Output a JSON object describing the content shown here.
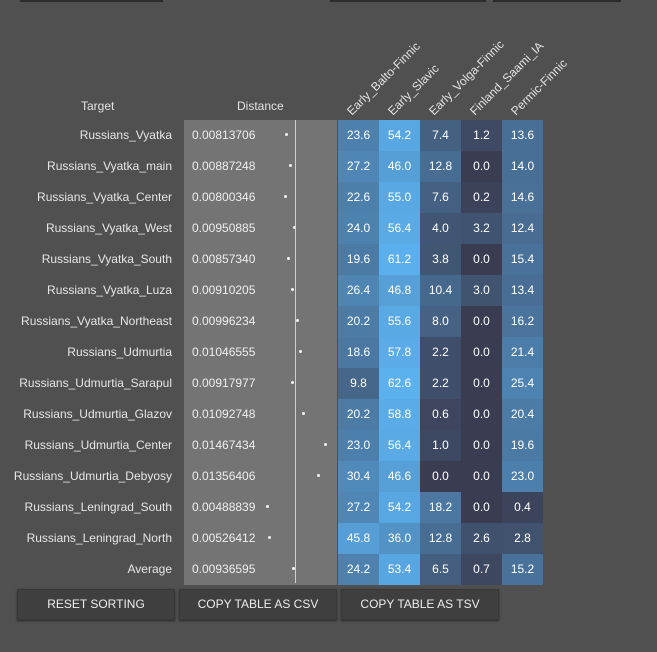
{
  "headers": {
    "target": "Target",
    "distance": "Distance",
    "components": [
      "Early_Balto-Finnic",
      "Early_Slavic",
      "Early_Volga-Finnic",
      "Finland_Saami_IA",
      "Permic-Finnic"
    ]
  },
  "rows": [
    {
      "target": "Russians_Vyatka",
      "distance": "0.00813706",
      "values": [
        "23.6",
        "54.2",
        "7.4",
        "1.2",
        "13.6"
      ]
    },
    {
      "target": "Russians_Vyatka_main",
      "distance": "0.00887248",
      "values": [
        "27.2",
        "46.0",
        "12.8",
        "0.0",
        "14.0"
      ]
    },
    {
      "target": "Russians_Vyatka_Center",
      "distance": "0.00800346",
      "values": [
        "22.6",
        "55.0",
        "7.6",
        "0.2",
        "14.6"
      ]
    },
    {
      "target": "Russians_Vyatka_West",
      "distance": "0.00950885",
      "values": [
        "24.0",
        "56.4",
        "4.0",
        "3.2",
        "12.4"
      ]
    },
    {
      "target": "Russians_Vyatka_South",
      "distance": "0.00857340",
      "values": [
        "19.6",
        "61.2",
        "3.8",
        "0.0",
        "15.4"
      ]
    },
    {
      "target": "Russians_Vyatka_Luza",
      "distance": "0.00910205",
      "values": [
        "26.4",
        "46.8",
        "10.4",
        "3.0",
        "13.4"
      ]
    },
    {
      "target": "Russians_Vyatka_Northeast",
      "distance": "0.00996234",
      "values": [
        "20.2",
        "55.6",
        "8.0",
        "0.0",
        "16.2"
      ]
    },
    {
      "target": "Russians_Udmurtia",
      "distance": "0.01046555",
      "values": [
        "18.6",
        "57.8",
        "2.2",
        "0.0",
        "21.4"
      ]
    },
    {
      "target": "Russians_Udmurtia_Sarapul",
      "distance": "0.00917977",
      "values": [
        "9.8",
        "62.6",
        "2.2",
        "0.0",
        "25.4"
      ]
    },
    {
      "target": "Russians_Udmurtia_Glazov",
      "distance": "0.01092748",
      "values": [
        "20.2",
        "58.8",
        "0.6",
        "0.0",
        "20.4"
      ]
    },
    {
      "target": "Russians_Udmurtia_Center",
      "distance": "0.01467434",
      "values": [
        "23.0",
        "56.4",
        "1.0",
        "0.0",
        "19.6"
      ]
    },
    {
      "target": "Russians_Udmurtia_Debyosy",
      "distance": "0.01356406",
      "values": [
        "30.4",
        "46.6",
        "0.0",
        "0.0",
        "23.0"
      ]
    },
    {
      "target": "Russians_Leningrad_South",
      "distance": "0.00488839",
      "values": [
        "27.2",
        "54.2",
        "18.2",
        "0.0",
        "0.4"
      ]
    },
    {
      "target": "Russians_Leningrad_North",
      "distance": "0.00526412",
      "values": [
        "45.8",
        "36.0",
        "12.8",
        "2.6",
        "2.8"
      ]
    },
    {
      "target": "Average",
      "distance": "0.00936595",
      "values": [
        "24.2",
        "53.4",
        "6.5",
        "0.7",
        "15.2"
      ]
    }
  ],
  "buttons": {
    "reset": "RESET SORTING",
    "csv": "COPY TABLE AS CSV",
    "tsv": "COPY TABLE AS TSV"
  }
}
